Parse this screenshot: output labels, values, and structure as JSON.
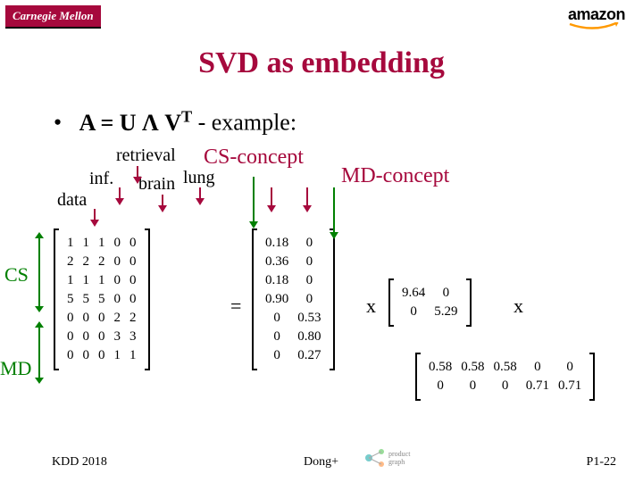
{
  "logos": {
    "cmu_text": "Carnegie Mellon",
    "cmu_bg": "#a6093d",
    "cmu_color": "#ffffff",
    "amazon_text": "amazon",
    "amazon_color": "#000000",
    "amazon_arrow_color": "#ff9900",
    "pg_label": "product graph"
  },
  "title": {
    "text": "SVD as embedding",
    "color": "#a6093d",
    "fontsize": 34
  },
  "equation": {
    "bullet": "•",
    "prefix": "A = U ",
    "lambda": "Λ",
    "mid": " V",
    "sup": "T",
    "suffix": " - example:",
    "fontsize": 26
  },
  "labels": {
    "data": "data",
    "inf": "inf.",
    "retrieval": "retrieval",
    "brain": "brain",
    "lung": "lung",
    "cs_concept": "CS-concept",
    "md_concept": "MD-concept",
    "CS": "CS",
    "MD": "MD",
    "label_fontsize": 20,
    "concept_color": "#a6093d",
    "concept_fontsize": 24,
    "side_color": "#008000",
    "side_fontsize": 22
  },
  "matrixA": {
    "rows": [
      [
        1,
        1,
        1,
        0,
        0
      ],
      [
        2,
        2,
        2,
        0,
        0
      ],
      [
        1,
        1,
        1,
        0,
        0
      ],
      [
        5,
        5,
        5,
        0,
        0
      ],
      [
        0,
        0,
        0,
        2,
        2
      ],
      [
        0,
        0,
        0,
        3,
        3
      ],
      [
        0,
        0,
        0,
        1,
        1
      ]
    ]
  },
  "matrixU": {
    "rows": [
      [
        "0.18",
        "0"
      ],
      [
        "0.36",
        "0"
      ],
      [
        "0.18",
        "0"
      ],
      [
        "0.90",
        "0"
      ],
      [
        "0",
        "0.53"
      ],
      [
        "0",
        "0.80"
      ],
      [
        "0",
        "0.27"
      ]
    ]
  },
  "matrixS": {
    "rows": [
      [
        "9.64",
        "0"
      ],
      [
        "0",
        "5.29"
      ]
    ]
  },
  "matrixVt": {
    "rows": [
      [
        "0.58",
        "0.58",
        "0.58",
        "0",
        "0"
      ],
      [
        "0",
        "0",
        "0",
        "0.71",
        "0.71"
      ]
    ]
  },
  "ops": {
    "eq": "=",
    "x1": "x",
    "x2": "x"
  },
  "footer": {
    "conf": "KDD 2018",
    "authors": "Dong+",
    "page": "P1-22"
  },
  "arrows": {
    "red": "#a6093d",
    "green": "#008000"
  }
}
